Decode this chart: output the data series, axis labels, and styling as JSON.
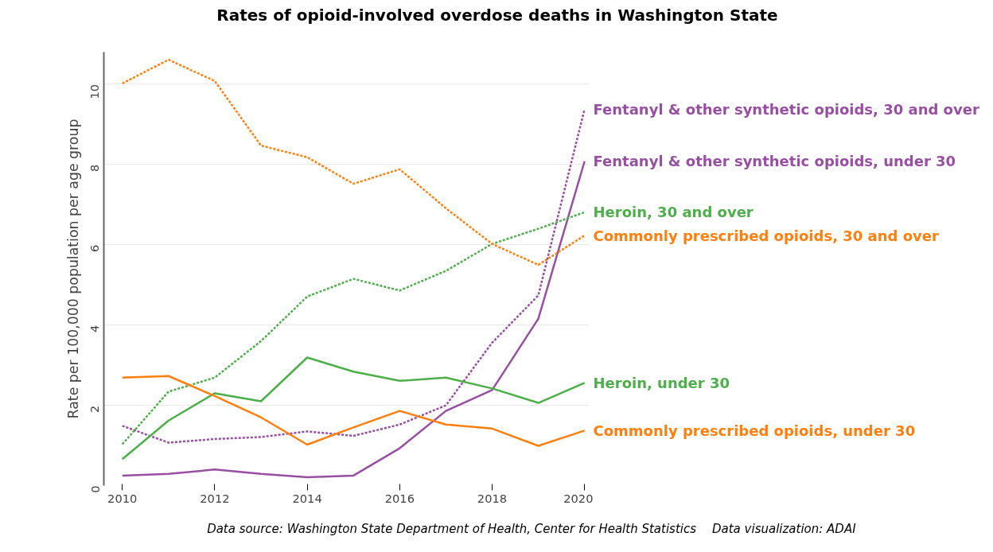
{
  "chart_data": {
    "type": "line",
    "title": "Rates of opioid-involved overdose deaths in Washington State",
    "ylabel": "Rate per 100,000 population per age group",
    "x": [
      2010,
      2011,
      2012,
      2013,
      2014,
      2015,
      2016,
      2017,
      2018,
      2019,
      2020
    ],
    "xlim": [
      2009.6,
      2020.1
    ],
    "xticks": [
      2010,
      2012,
      2014,
      2016,
      2018,
      2020
    ],
    "ylim": [
      0,
      10.8
    ],
    "yticks": [
      0,
      2,
      4,
      6,
      8,
      10
    ],
    "grid": "y",
    "legend": false,
    "series": [
      {
        "name": "Fentanyl & other synthetic opioids, 30 and over",
        "color": "#984ea3",
        "line_style": "dashed",
        "values": [
          1.49,
          1.07,
          1.16,
          1.21,
          1.35,
          1.24,
          1.52,
          2.0,
          3.56,
          4.74,
          9.38
        ]
      },
      {
        "name": "Fentanyl & other synthetic opioids, under 30",
        "color": "#984ea3",
        "line_style": "solid",
        "values": [
          0.25,
          0.29,
          0.4,
          0.29,
          0.21,
          0.25,
          0.93,
          1.86,
          2.38,
          4.16,
          8.08
        ]
      },
      {
        "name": "Heroin, 30 and over",
        "color": "#4daf4a",
        "line_style": "dashed",
        "values": [
          1.03,
          2.34,
          2.69,
          3.6,
          4.71,
          5.15,
          4.86,
          5.35,
          6.02,
          6.4,
          6.81
        ]
      },
      {
        "name": "Commonly prescribed opioids, 30 and over",
        "color": "#ff7f0e",
        "line_style": "dashed",
        "values": [
          10.02,
          10.61,
          10.08,
          8.47,
          8.18,
          7.52,
          7.88,
          6.91,
          6.02,
          5.5,
          6.23
        ]
      },
      {
        "name": "Heroin, under 30",
        "color": "#4daf4a",
        "line_style": "solid",
        "values": [
          0.66,
          1.62,
          2.3,
          2.1,
          3.19,
          2.84,
          2.61,
          2.69,
          2.42,
          2.06,
          2.56
        ]
      },
      {
        "name": "Commonly prescribed opioids, under 30",
        "color": "#ff7f0e",
        "line_style": "solid",
        "values": [
          2.69,
          2.73,
          2.23,
          1.7,
          1.02,
          1.45,
          1.86,
          1.52,
          1.42,
          0.99,
          1.37
        ]
      }
    ],
    "annotations": [
      "Data source: Washington State Department of Health, Center for Health Statistics",
      "Data visualization: ADAI"
    ]
  }
}
